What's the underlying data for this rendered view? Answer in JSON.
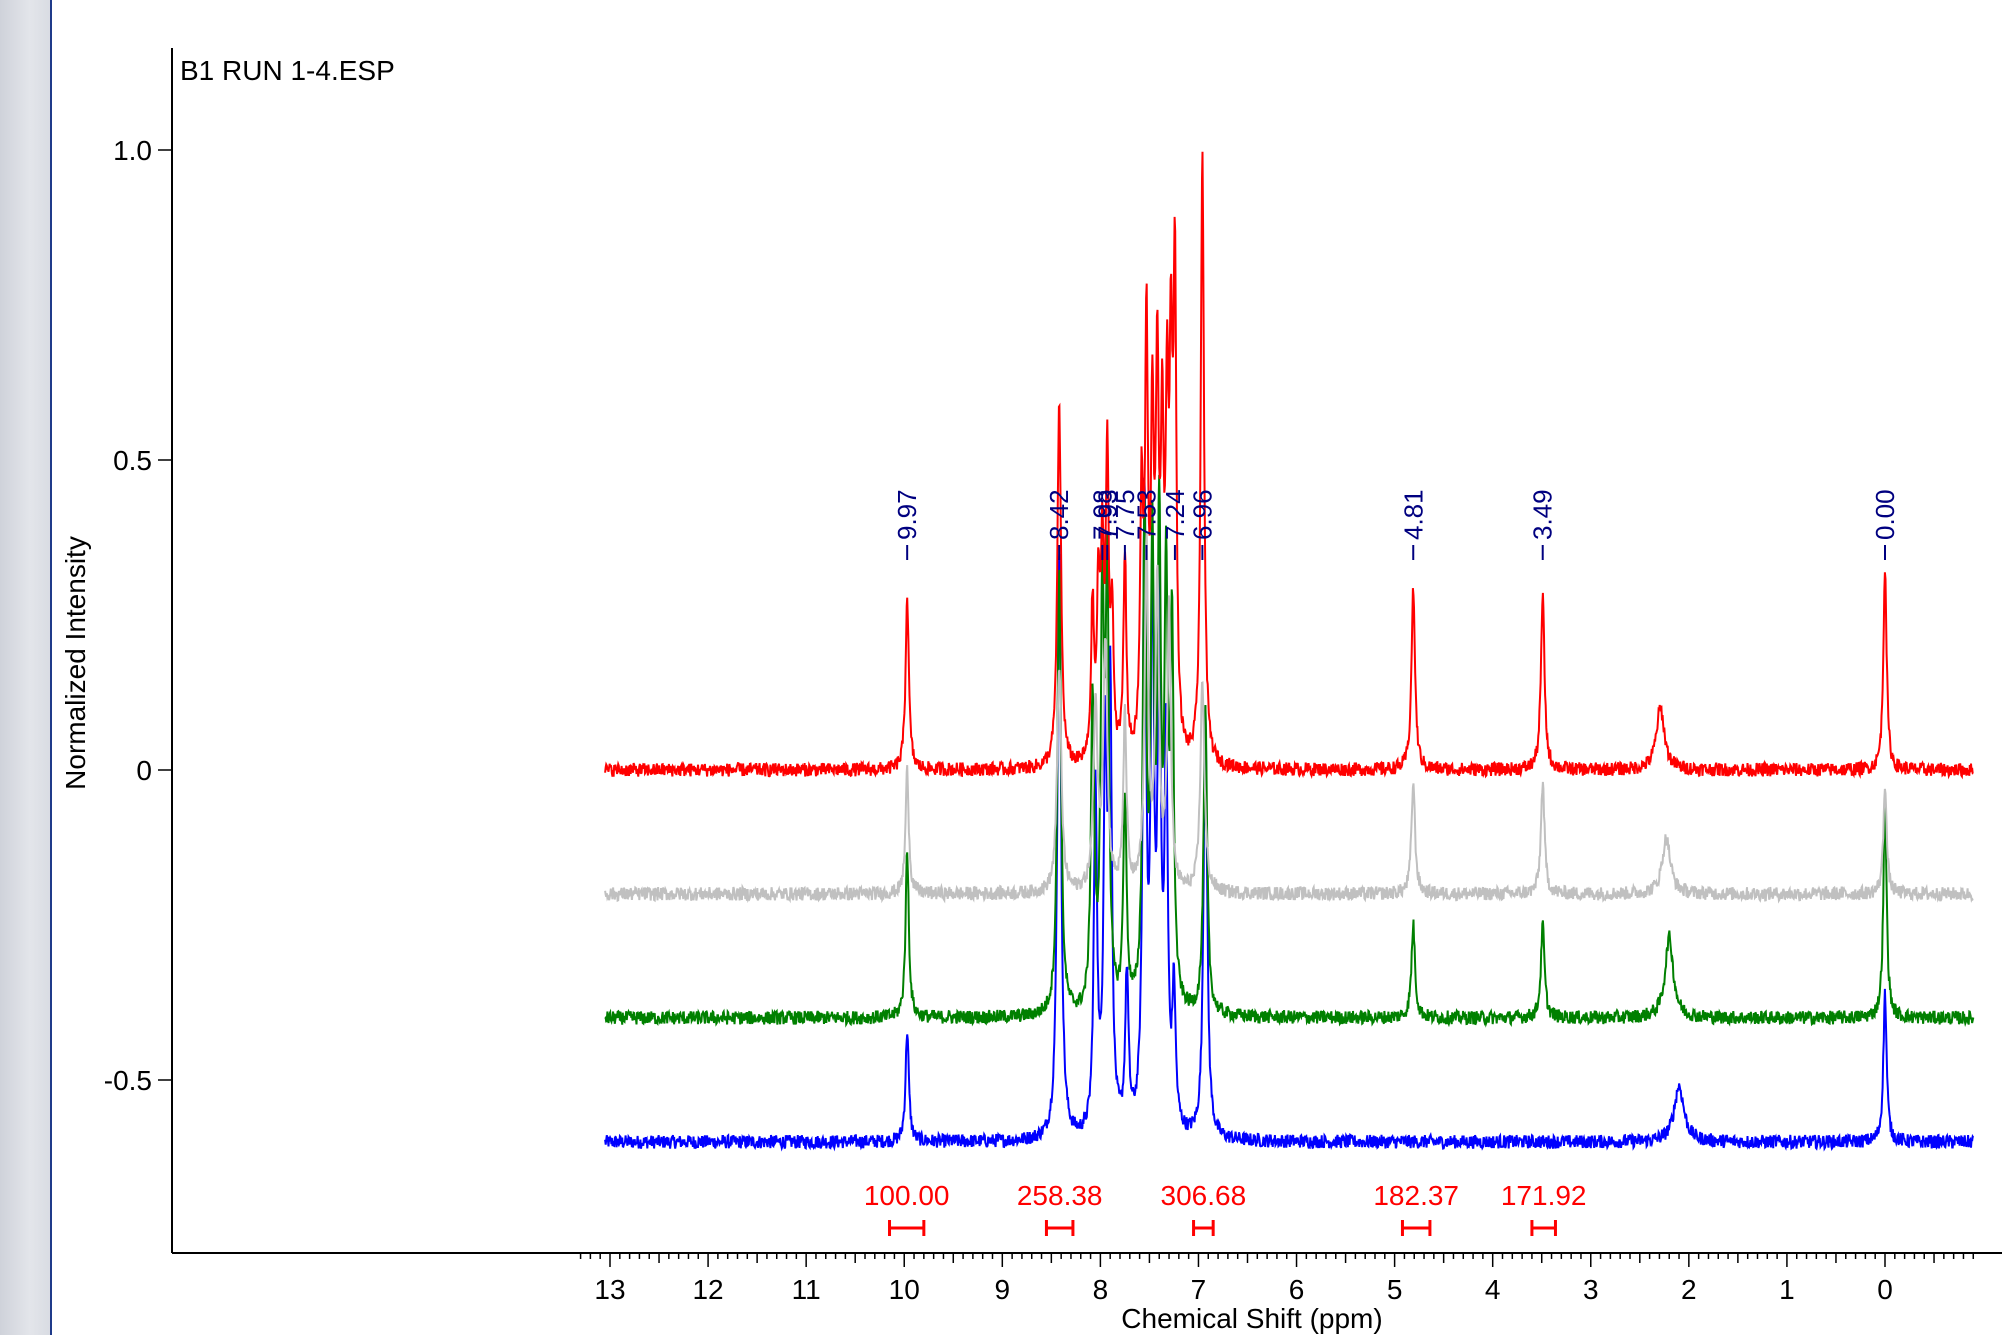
{
  "chart_data": {
    "type": "line",
    "title": "B1 RUN 1-4.ESP",
    "xlabel": "Chemical Shift (ppm)",
    "ylabel": "Normalized Intensity",
    "x_reversed": true,
    "xlim": [
      13.3,
      -0.9
    ],
    "ylim": [
      -0.78,
      1.17
    ],
    "x_ticks": [
      13,
      12,
      11,
      10,
      9,
      8,
      7,
      6,
      5,
      4,
      3,
      2,
      1,
      0
    ],
    "x_tick_labels": [
      "13",
      "12",
      "11",
      "10",
      "9",
      "8",
      "7",
      "6",
      "5",
      "4",
      "3",
      "2",
      "1",
      "0"
    ],
    "y_ticks": [
      1.0,
      0.5,
      0,
      -0.5
    ],
    "y_tick_labels": [
      "1.0",
      "0.5",
      "0",
      "-0.5"
    ],
    "grid": false,
    "peak_labels": [
      {
        "x": 9.97,
        "label": "9.97"
      },
      {
        "x": 8.42,
        "label": "8.42"
      },
      {
        "x": 7.98,
        "label": "7.98"
      },
      {
        "x": 7.93,
        "label": "7.93"
      },
      {
        "x": 7.75,
        "label": "7.75"
      },
      {
        "x": 7.53,
        "label": "7.53"
      },
      {
        "x": 7.24,
        "label": "7.24"
      },
      {
        "x": 6.96,
        "label": "6.96"
      },
      {
        "x": 4.81,
        "label": "4.81"
      },
      {
        "x": 3.49,
        "label": "3.49"
      },
      {
        "x": 0.0,
        "label": "0.00"
      }
    ],
    "integrals": [
      {
        "from": 10.15,
        "to": 9.8,
        "label": "100.00"
      },
      {
        "from": 8.55,
        "to": 8.28,
        "label": "258.38"
      },
      {
        "from": 7.05,
        "to": 6.85,
        "label": "306.68"
      },
      {
        "from": 4.92,
        "to": 4.64,
        "label": "182.37"
      },
      {
        "from": 3.6,
        "to": 3.36,
        "label": "171.92"
      }
    ],
    "series": [
      {
        "color": "#ff0000",
        "baseline": 0,
        "peaks": [
          {
            "x": 9.97,
            "h": 0.28,
            "w": 0.02
          },
          {
            "x": 8.42,
            "h": 0.59,
            "w": 0.022
          },
          {
            "x": 8.08,
            "h": 0.25,
            "w": 0.018
          },
          {
            "x": 8.02,
            "h": 0.26,
            "w": 0.018
          },
          {
            "x": 7.98,
            "h": 0.31,
            "w": 0.018
          },
          {
            "x": 7.93,
            "h": 0.48,
            "w": 0.018
          },
          {
            "x": 7.88,
            "h": 0.22,
            "w": 0.018
          },
          {
            "x": 7.75,
            "h": 0.33,
            "w": 0.018
          },
          {
            "x": 7.58,
            "h": 0.4,
            "w": 0.018
          },
          {
            "x": 7.53,
            "h": 0.66,
            "w": 0.018
          },
          {
            "x": 7.47,
            "h": 0.5,
            "w": 0.018
          },
          {
            "x": 7.42,
            "h": 0.59,
            "w": 0.018
          },
          {
            "x": 7.37,
            "h": 0.47,
            "w": 0.018
          },
          {
            "x": 7.32,
            "h": 0.5,
            "w": 0.018
          },
          {
            "x": 7.28,
            "h": 0.56,
            "w": 0.018
          },
          {
            "x": 7.24,
            "h": 0.75,
            "w": 0.018
          },
          {
            "x": 6.96,
            "h": 0.99,
            "w": 0.02
          },
          {
            "x": 4.81,
            "h": 0.29,
            "w": 0.022
          },
          {
            "x": 3.49,
            "h": 0.28,
            "w": 0.022
          },
          {
            "x": 2.29,
            "h": 0.1,
            "w": 0.05
          },
          {
            "x": 0.0,
            "h": 0.33,
            "w": 0.02
          }
        ]
      },
      {
        "color": "#c0c0c0",
        "baseline": -0.2,
        "peaks": [
          {
            "x": 9.97,
            "h": 0.2,
            "w": 0.02
          },
          {
            "x": 8.42,
            "h": 0.37,
            "w": 0.025
          },
          {
            "x": 8.05,
            "h": 0.3,
            "w": 0.025
          },
          {
            "x": 7.95,
            "h": 0.4,
            "w": 0.025
          },
          {
            "x": 7.75,
            "h": 0.28,
            "w": 0.02
          },
          {
            "x": 7.53,
            "h": 0.55,
            "w": 0.022
          },
          {
            "x": 7.42,
            "h": 0.5,
            "w": 0.022
          },
          {
            "x": 7.3,
            "h": 0.45,
            "w": 0.022
          },
          {
            "x": 6.96,
            "h": 0.34,
            "w": 0.025
          },
          {
            "x": 4.81,
            "h": 0.18,
            "w": 0.022
          },
          {
            "x": 3.49,
            "h": 0.18,
            "w": 0.022
          },
          {
            "x": 2.23,
            "h": 0.09,
            "w": 0.05
          },
          {
            "x": 0.0,
            "h": 0.18,
            "w": 0.02
          }
        ]
      },
      {
        "color": "#008000",
        "baseline": -0.4,
        "peaks": [
          {
            "x": 9.97,
            "h": 0.27,
            "w": 0.02
          },
          {
            "x": 8.42,
            "h": 0.73,
            "w": 0.022
          },
          {
            "x": 8.08,
            "h": 0.5,
            "w": 0.02
          },
          {
            "x": 7.98,
            "h": 0.65,
            "w": 0.02
          },
          {
            "x": 7.93,
            "h": 0.68,
            "w": 0.02
          },
          {
            "x": 7.75,
            "h": 0.34,
            "w": 0.02
          },
          {
            "x": 7.55,
            "h": 0.78,
            "w": 0.02
          },
          {
            "x": 7.47,
            "h": 0.7,
            "w": 0.02
          },
          {
            "x": 7.4,
            "h": 0.75,
            "w": 0.02
          },
          {
            "x": 7.33,
            "h": 0.65,
            "w": 0.02
          },
          {
            "x": 7.27,
            "h": 0.6,
            "w": 0.02
          },
          {
            "x": 6.93,
            "h": 0.49,
            "w": 0.022
          },
          {
            "x": 4.81,
            "h": 0.15,
            "w": 0.022
          },
          {
            "x": 3.49,
            "h": 0.15,
            "w": 0.022
          },
          {
            "x": 2.2,
            "h": 0.13,
            "w": 0.05
          },
          {
            "x": 0.0,
            "h": 0.35,
            "w": 0.02
          }
        ]
      },
      {
        "color": "#0000ff",
        "baseline": -0.6,
        "peaks": [
          {
            "x": 9.97,
            "h": 0.18,
            "w": 0.02
          },
          {
            "x": 8.42,
            "h": 0.96,
            "w": 0.022
          },
          {
            "x": 8.05,
            "h": 0.55,
            "w": 0.02
          },
          {
            "x": 7.95,
            "h": 0.6,
            "w": 0.02
          },
          {
            "x": 7.9,
            "h": 0.7,
            "w": 0.02
          },
          {
            "x": 7.73,
            "h": 0.25,
            "w": 0.02
          },
          {
            "x": 7.55,
            "h": 1.0,
            "w": 0.02
          },
          {
            "x": 7.47,
            "h": 0.85,
            "w": 0.02
          },
          {
            "x": 7.4,
            "h": 0.8,
            "w": 0.02
          },
          {
            "x": 7.33,
            "h": 0.6,
            "w": 0.02
          },
          {
            "x": 7.25,
            "h": 0.22,
            "w": 0.02
          },
          {
            "x": 6.93,
            "h": 0.7,
            "w": 0.022
          },
          {
            "x": 2.1,
            "h": 0.09,
            "w": 0.06
          },
          {
            "x": 0.0,
            "h": 0.24,
            "w": 0.02
          }
        ]
      }
    ]
  }
}
